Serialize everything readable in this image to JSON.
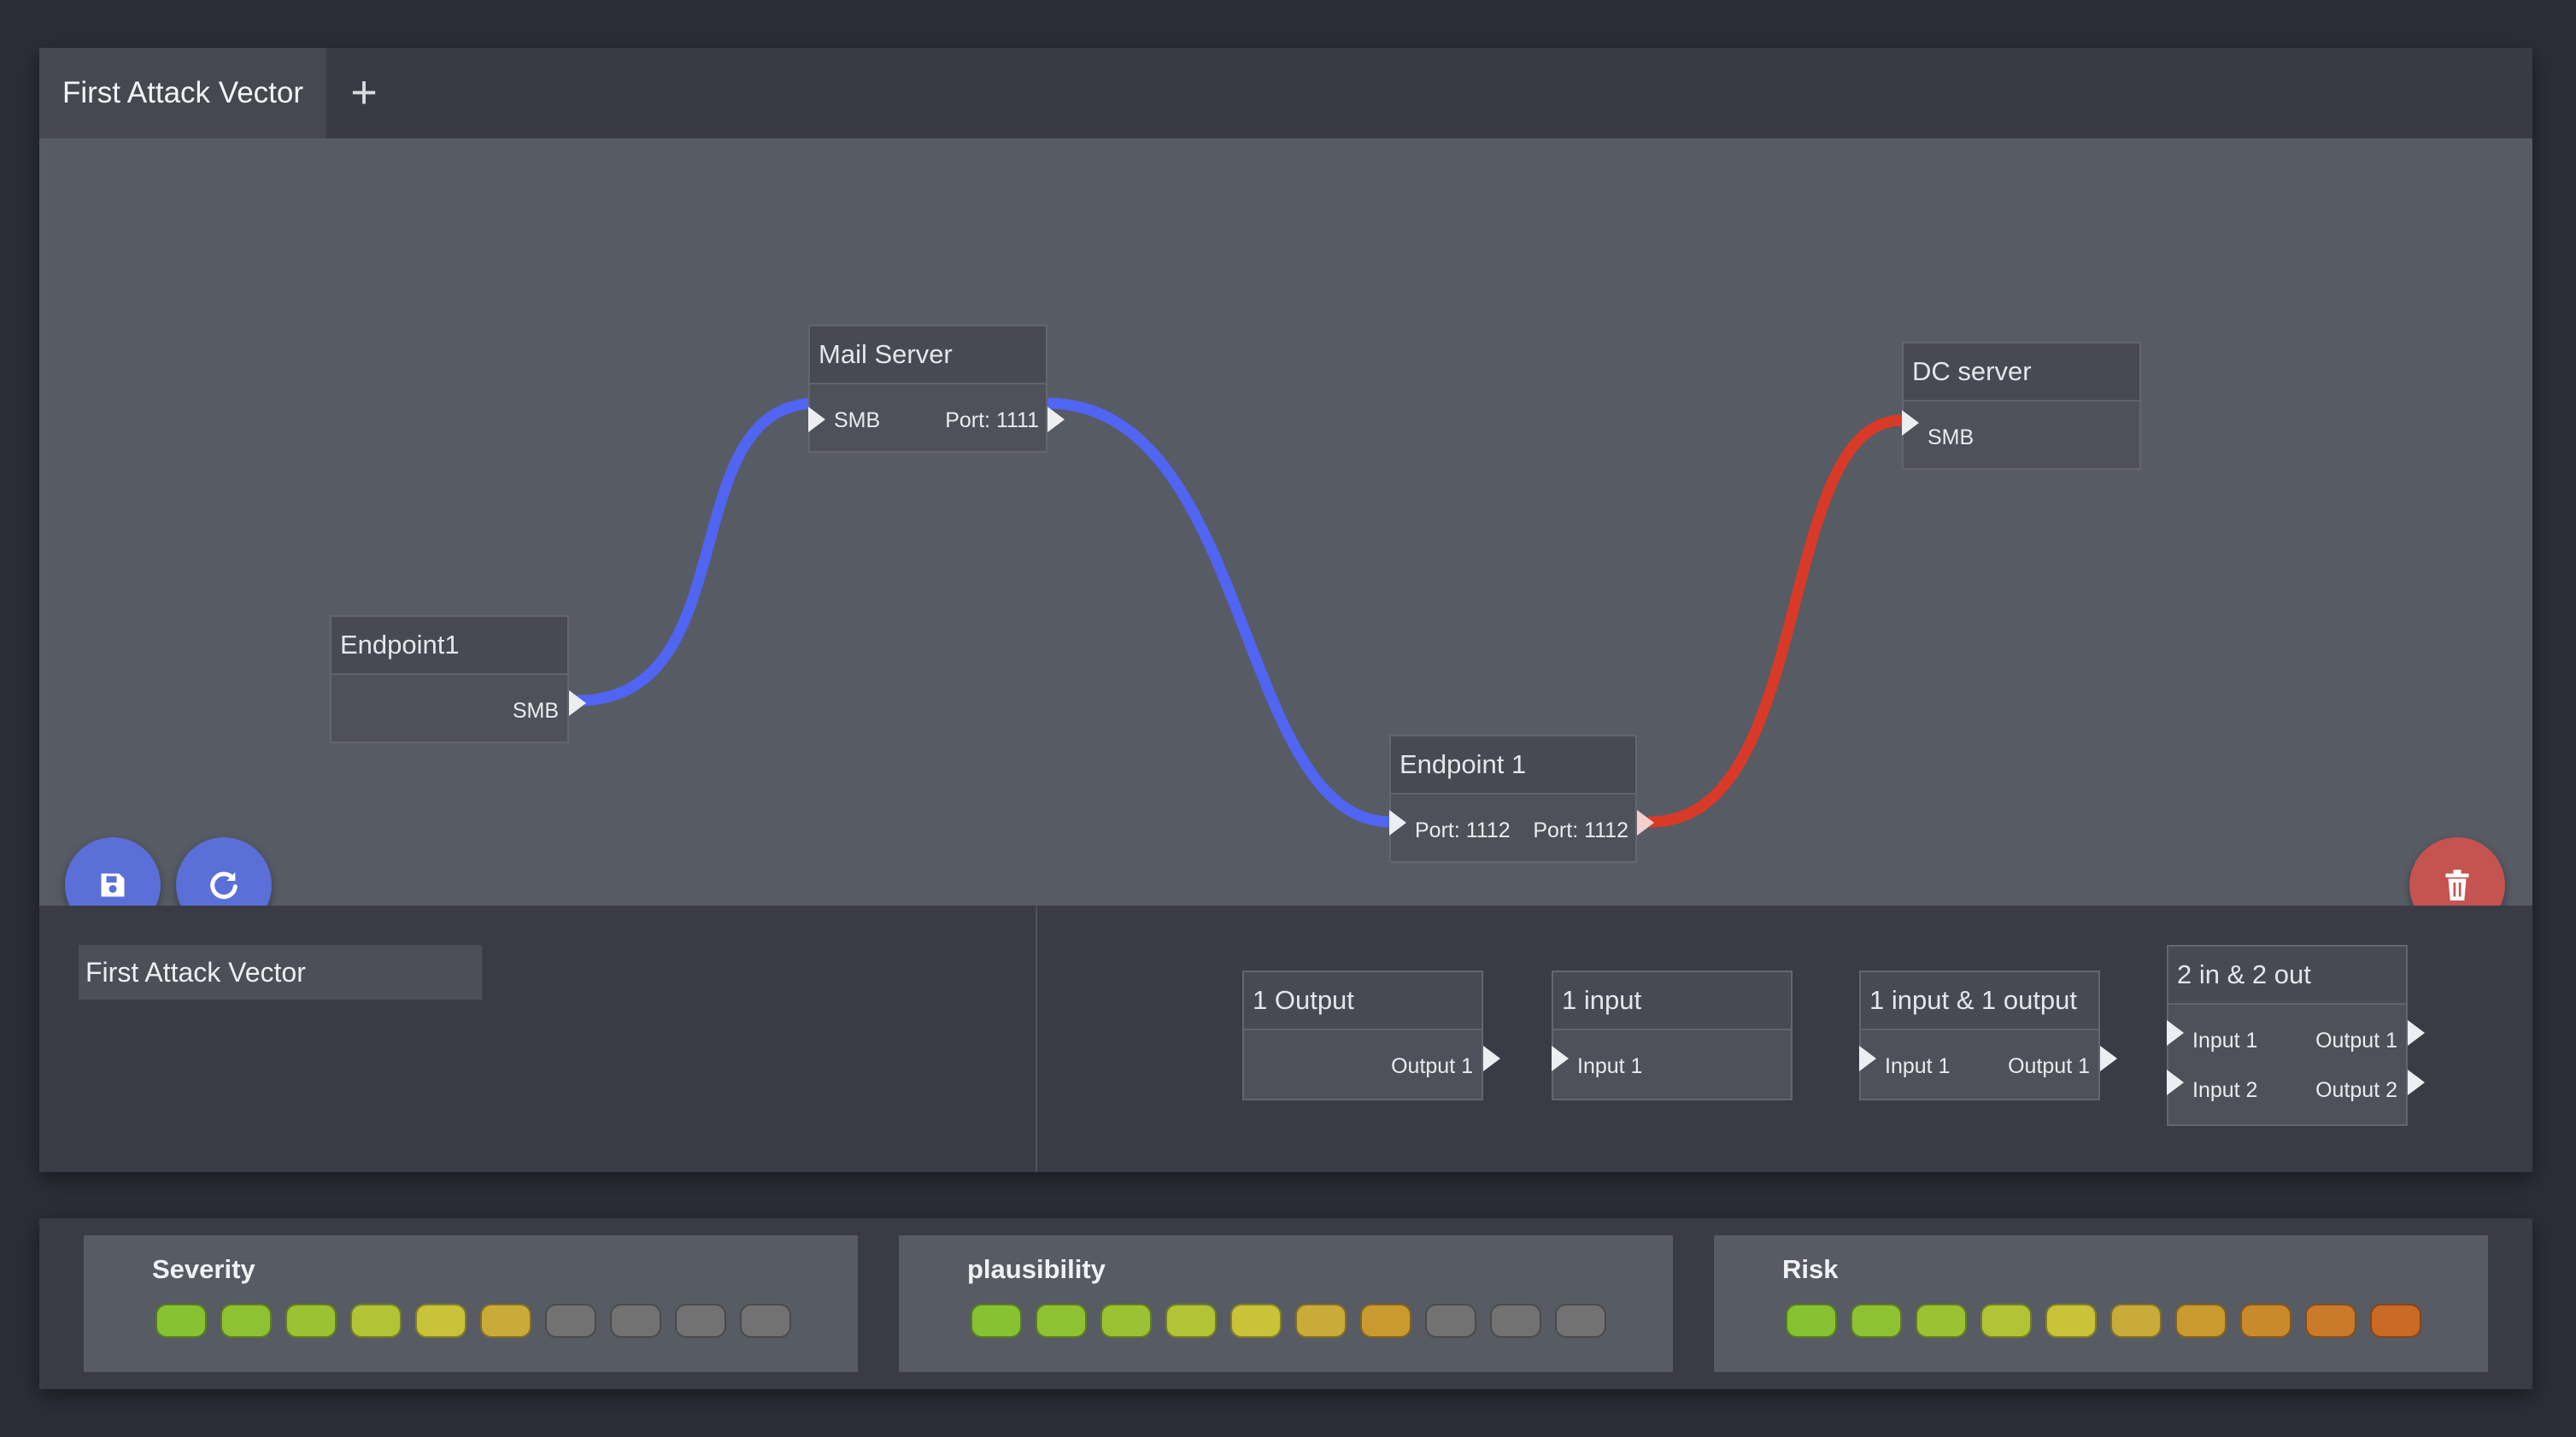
{
  "tabs": [
    {
      "label": "First Attack Vector"
    }
  ],
  "tab_add_label": "+",
  "graph": {
    "nodes": {
      "mail_server": {
        "title": "Mail Server",
        "in_port": "SMB",
        "out_port": "Port: 1111"
      },
      "endpoint1": {
        "title": "Endpoint1",
        "out_port": "SMB"
      },
      "endpoint_1": {
        "title": "Endpoint 1",
        "in_port": "Port: 1112",
        "out_port": "Port: 1112"
      },
      "dc_server": {
        "title": "DC server",
        "in_port": "SMB"
      }
    },
    "link_colors": {
      "blue": "#5065f2",
      "red": "#d93a28"
    }
  },
  "actions": {
    "save_icon": "floppy-disk-icon",
    "reload_icon": "reload-icon",
    "delete_icon": "trash-icon"
  },
  "vector_name": {
    "value": "First Attack Vector"
  },
  "palette": [
    {
      "title": "1 Output",
      "outputs": [
        "Output 1"
      ]
    },
    {
      "title": "1 input",
      "inputs": [
        "Input 1"
      ]
    },
    {
      "title": "1 input & 1 output",
      "inputs": [
        "Input 1"
      ],
      "outputs": [
        "Output 1"
      ]
    },
    {
      "title": "2 in & 2 out",
      "inputs": [
        "Input 1",
        "Input 2"
      ],
      "outputs": [
        "Output 1",
        "Output 2"
      ]
    }
  ],
  "ratings": {
    "severity": {
      "label": "Severity",
      "colors": [
        "#86c232",
        "#8fc232",
        "#9ac232",
        "#b2c436",
        "#c9c33a",
        "#c9ab3a",
        "#727272",
        "#727272",
        "#727272",
        "#727272"
      ]
    },
    "plausibility": {
      "label": "plausibility",
      "colors": [
        "#86c232",
        "#8fc232",
        "#9ac232",
        "#b2c436",
        "#c9c33a",
        "#c9ab3a",
        "#c99a30",
        "#727272",
        "#727272",
        "#727272"
      ]
    },
    "risk": {
      "label": "Risk",
      "colors": [
        "#86c232",
        "#8fc232",
        "#9ac232",
        "#b2c436",
        "#c9c33a",
        "#c9ab3a",
        "#c99a30",
        "#c98a2c",
        "#c97a2a",
        "#c96a26"
      ]
    }
  }
}
